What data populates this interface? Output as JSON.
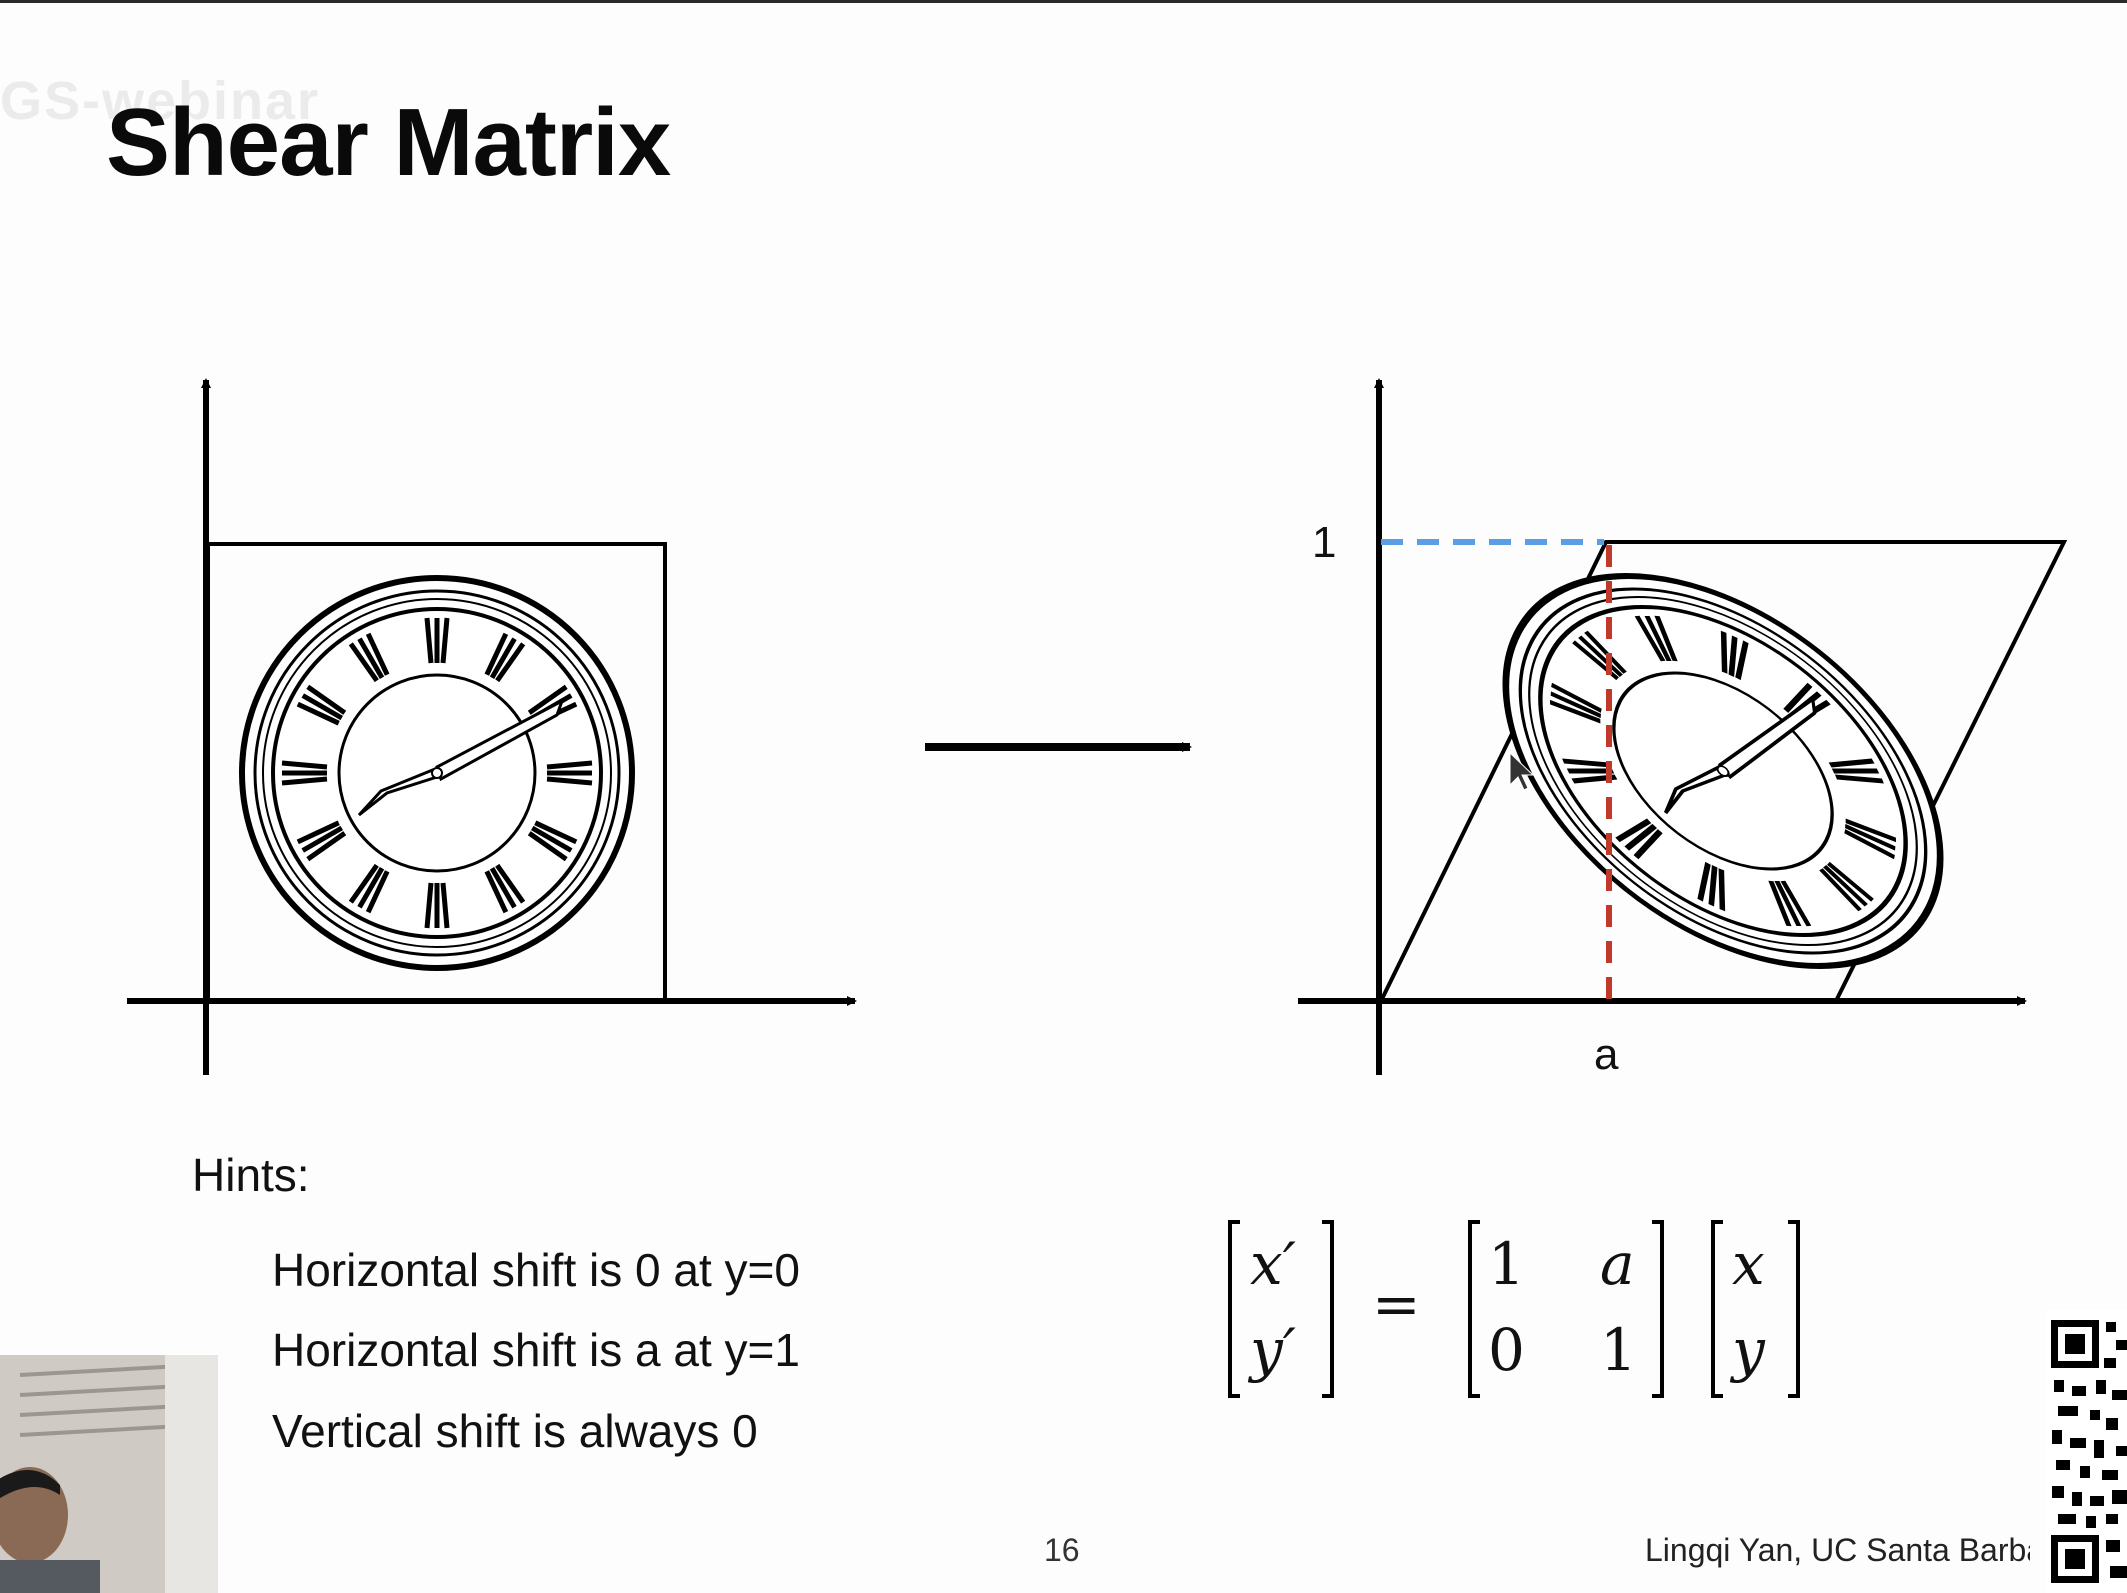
{
  "slide": {
    "title": "Shear Matrix",
    "watermark": "GS-webinar",
    "hints_title": "Hints:",
    "hints": [
      "Horizontal shift is 0 at y=0",
      "Horizontal shift is a at y=1",
      "Vertical shift is always 0"
    ],
    "axis_label_one": "1",
    "axis_label_a": "a",
    "matrix": {
      "lhs": [
        "x′",
        "y′"
      ],
      "equals": "=",
      "m11": "1",
      "m12": "a",
      "m21": "0",
      "m22": "1",
      "rhs": [
        "x",
        "y"
      ]
    },
    "page_number": "16",
    "footer": "Lingqi Yan, UC Santa Barbara"
  },
  "colors": {
    "blue_dash": "#5b9ee6",
    "red_dash": "#c0392b"
  },
  "icons": [
    "clock-image",
    "sheared-clock-image",
    "transform-arrow-icon",
    "presenter-webcam",
    "qr-code"
  ]
}
